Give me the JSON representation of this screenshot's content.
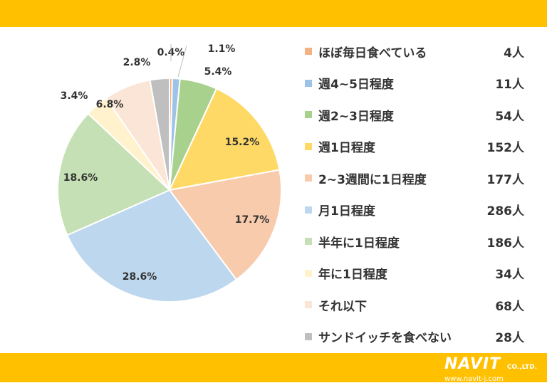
{
  "colors": {
    "band": "#ffc000",
    "outline": "#ffffff",
    "text": "#333333"
  },
  "logo": {
    "name": "NAVIT",
    "suffix": "CO.,LTD.",
    "url": "www.navit-j.com"
  },
  "chart_data": {
    "type": "pie",
    "title": "",
    "unit": "人",
    "legend_position": "right",
    "start_angle_deg": 0,
    "direction": "clockwise",
    "slices": [
      {
        "label": "ほぼ毎日食べている",
        "count": 4,
        "count_label": "4人",
        "percent": 0.4,
        "percent_label": "0.4%",
        "color": "#f4b183"
      },
      {
        "label": "週4~5日程度",
        "count": 11,
        "count_label": "11人",
        "percent": 1.1,
        "percent_label": "1.1%",
        "color": "#9dc3e6"
      },
      {
        "label": "週2~3日程度",
        "count": 54,
        "count_label": "54人",
        "percent": 5.4,
        "percent_label": "5.4%",
        "color": "#a9d18e"
      },
      {
        "label": "週1日程度",
        "count": 152,
        "count_label": "152人",
        "percent": 15.2,
        "percent_label": "15.2%",
        "color": "#ffd966"
      },
      {
        "label": "2~3週間に1日程度",
        "count": 177,
        "count_label": "177人",
        "percent": 17.7,
        "percent_label": "17.7%",
        "color": "#f8cbad"
      },
      {
        "label": "月1日程度",
        "count": 286,
        "count_label": "286人",
        "percent": 28.6,
        "percent_label": "28.6%",
        "color": "#bdd7ee"
      },
      {
        "label": "半年に1日程度",
        "count": 186,
        "count_label": "186人",
        "percent": 18.6,
        "percent_label": "18.6%",
        "color": "#c5e0b4"
      },
      {
        "label": "年に1日程度",
        "count": 34,
        "count_label": "34人",
        "percent": 3.4,
        "percent_label": "3.4%",
        "color": "#fff2cc"
      },
      {
        "label": "それ以下",
        "count": 68,
        "count_label": "68人",
        "percent": 6.8,
        "percent_label": "6.8%",
        "color": "#fbe5d6"
      },
      {
        "label": "サンドイッチを食べない",
        "count": 28,
        "count_label": "28人",
        "percent": 2.8,
        "percent_label": "2.8%",
        "color": "#bfbfbf"
      }
    ]
  }
}
